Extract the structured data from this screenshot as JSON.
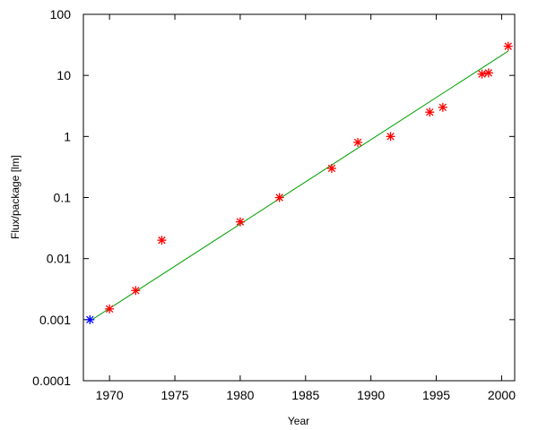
{
  "chart_data": {
    "type": "scatter",
    "title": "",
    "xlabel": "Year",
    "ylabel": "Flux/package [lm]",
    "x_range": [
      1968,
      2001
    ],
    "y_range": [
      0.0001,
      100
    ],
    "y_scale": "log",
    "grid": false,
    "x_ticks": [
      1970,
      1975,
      1980,
      1985,
      1990,
      1995,
      2000
    ],
    "x_tick_labels": [
      "1970",
      "1975",
      "1980",
      "1985",
      "1990",
      "1995",
      "2000"
    ],
    "y_ticks": [
      0.0001,
      0.001,
      0.01,
      0.1,
      1,
      10,
      100
    ],
    "y_tick_labels": [
      "0.0001",
      "0.001",
      "0.01",
      "0.1",
      "1",
      "10",
      "100"
    ],
    "series": [
      {
        "color": "#0000ff",
        "marker": "asterisk",
        "points": [
          {
            "x": 1968.5,
            "y": 0.001
          }
        ]
      },
      {
        "color": "#ff0000",
        "marker": "asterisk",
        "points": [
          {
            "x": 1970,
            "y": 0.0015
          },
          {
            "x": 1972,
            "y": 0.003
          },
          {
            "x": 1974,
            "y": 0.02
          },
          {
            "x": 1980,
            "y": 0.04
          },
          {
            "x": 1983,
            "y": 0.1
          },
          {
            "x": 1987,
            "y": 0.3
          },
          {
            "x": 1989,
            "y": 0.8
          },
          {
            "x": 1991.5,
            "y": 1.0
          },
          {
            "x": 1994.5,
            "y": 2.5
          },
          {
            "x": 1995.5,
            "y": 3.0
          },
          {
            "x": 1998.5,
            "y": 10.5
          },
          {
            "x": 1999,
            "y": 11
          },
          {
            "x": 2000.5,
            "y": 30
          }
        ]
      }
    ],
    "trend_line": {
      "color": "#00a000",
      "points": [
        {
          "x": 1968.5,
          "y": 0.00095
        },
        {
          "x": 2000.5,
          "y": 25
        }
      ]
    }
  }
}
